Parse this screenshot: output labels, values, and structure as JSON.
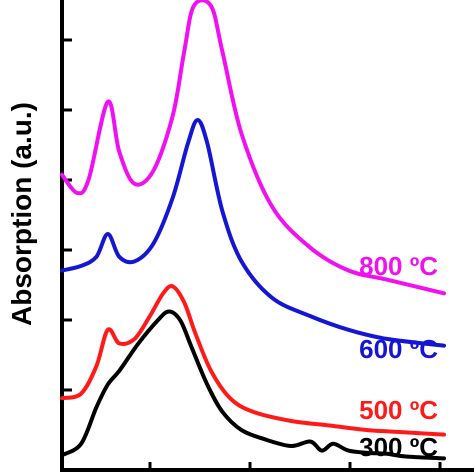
{
  "chart_data": {
    "type": "line",
    "ylabel": "Absorption (a.u.)",
    "xlabel": "",
    "x_range": [
      0,
      1
    ],
    "y_range": [
      0,
      1
    ],
    "grid": false,
    "legend": "none; series labels printed next to curves on the right",
    "series": [
      {
        "name": "300 ºC",
        "color": "#000000",
        "points": [
          [
            0.0,
            0.015
          ],
          [
            0.05,
            0.04
          ],
          [
            0.09,
            0.12
          ],
          [
            0.12,
            0.17
          ],
          [
            0.15,
            0.2
          ],
          [
            0.2,
            0.26
          ],
          [
            0.25,
            0.31
          ],
          [
            0.28,
            0.33
          ],
          [
            0.31,
            0.31
          ],
          [
            0.34,
            0.25
          ],
          [
            0.38,
            0.17
          ],
          [
            0.42,
            0.11
          ],
          [
            0.47,
            0.07
          ],
          [
            0.53,
            0.05
          ],
          [
            0.6,
            0.035
          ],
          [
            0.65,
            0.045
          ],
          [
            0.68,
            0.025
          ],
          [
            0.71,
            0.04
          ],
          [
            0.75,
            0.025
          ],
          [
            0.8,
            0.02
          ],
          [
            0.85,
            0.018
          ],
          [
            0.9,
            0.012
          ],
          [
            1.0,
            0.008
          ]
        ]
      },
      {
        "name": "500 ºC",
        "color": "#ff1a1a",
        "points": [
          [
            0.0,
            0.14
          ],
          [
            0.05,
            0.15
          ],
          [
            0.09,
            0.21
          ],
          [
            0.12,
            0.29
          ],
          [
            0.15,
            0.26
          ],
          [
            0.19,
            0.27
          ],
          [
            0.23,
            0.32
          ],
          [
            0.265,
            0.37
          ],
          [
            0.29,
            0.385
          ],
          [
            0.32,
            0.35
          ],
          [
            0.35,
            0.28
          ],
          [
            0.39,
            0.2
          ],
          [
            0.44,
            0.14
          ],
          [
            0.5,
            0.11
          ],
          [
            0.6,
            0.09
          ],
          [
            0.7,
            0.08
          ],
          [
            0.8,
            0.07
          ],
          [
            0.9,
            0.065
          ],
          [
            1.0,
            0.06
          ]
        ]
      },
      {
        "name": "600 ºC",
        "color": "#1515d4",
        "points": [
          [
            0.0,
            0.42
          ],
          [
            0.05,
            0.43
          ],
          [
            0.09,
            0.45
          ],
          [
            0.12,
            0.5
          ],
          [
            0.15,
            0.45
          ],
          [
            0.19,
            0.44
          ],
          [
            0.24,
            0.48
          ],
          [
            0.29,
            0.58
          ],
          [
            0.33,
            0.7
          ],
          [
            0.355,
            0.75
          ],
          [
            0.38,
            0.7
          ],
          [
            0.42,
            0.55
          ],
          [
            0.47,
            0.44
          ],
          [
            0.55,
            0.36
          ],
          [
            0.65,
            0.32
          ],
          [
            0.75,
            0.29
          ],
          [
            0.85,
            0.27
          ],
          [
            1.0,
            0.255
          ]
        ]
      },
      {
        "name": "800 ºC",
        "color": "#f010f0",
        "points": [
          [
            0.0,
            0.63
          ],
          [
            0.04,
            0.59
          ],
          [
            0.07,
            0.62
          ],
          [
            0.12,
            0.79
          ],
          [
            0.15,
            0.68
          ],
          [
            0.19,
            0.61
          ],
          [
            0.24,
            0.64
          ],
          [
            0.29,
            0.76
          ],
          [
            0.32,
            0.9
          ],
          [
            0.345,
            1.0
          ],
          [
            0.39,
            1.0
          ],
          [
            0.42,
            0.9
          ],
          [
            0.47,
            0.72
          ],
          [
            0.55,
            0.56
          ],
          [
            0.65,
            0.47
          ],
          [
            0.75,
            0.42
          ],
          [
            0.85,
            0.4
          ],
          [
            1.0,
            0.37
          ]
        ]
      }
    ]
  }
}
